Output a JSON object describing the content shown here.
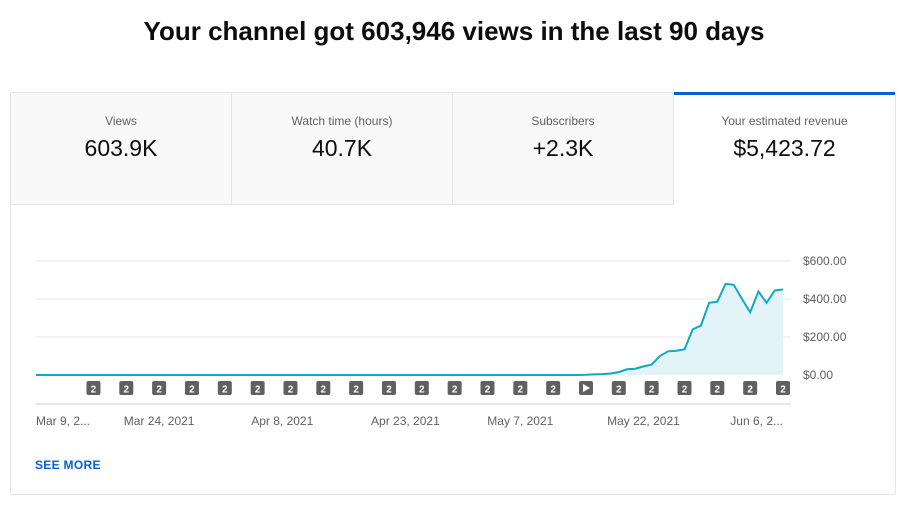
{
  "headline": "Your channel got 603,946 views in the last 90 days",
  "tabs": [
    {
      "label": "Views",
      "value": "603.9K",
      "active": false
    },
    {
      "label": "Watch time (hours)",
      "value": "40.7K",
      "active": false
    },
    {
      "label": "Subscribers",
      "value": "+2.3K",
      "active": false
    },
    {
      "label": "Your estimated revenue",
      "value": "$5,423.72",
      "active": true
    }
  ],
  "see_more": "SEE MORE",
  "colors": {
    "accent": "#065fd4",
    "line": "#10a8c4",
    "area": "#e3f4f8",
    "marker": "#606060"
  },
  "chart_data": {
    "type": "area",
    "ylabel": "",
    "xlabel": "",
    "ylim": [
      0,
      600
    ],
    "y_ticks": [
      {
        "value": 600,
        "label": "$600.00"
      },
      {
        "value": 400,
        "label": "$400.00"
      },
      {
        "value": 200,
        "label": "$200.00"
      },
      {
        "value": 0,
        "label": "$0.00"
      }
    ],
    "x_tick_labels": [
      {
        "day": 0,
        "label": "Mar 9, 2..."
      },
      {
        "day": 15,
        "label": "Mar 24, 2021"
      },
      {
        "day": 30,
        "label": "Apr 8, 2021"
      },
      {
        "day": 45,
        "label": "Apr 23, 2021"
      },
      {
        "day": 59,
        "label": "May 7, 2021"
      },
      {
        "day": 74,
        "label": "May 22, 2021"
      },
      {
        "day": 89,
        "label": "Jun 6, 2..."
      }
    ],
    "series": [
      {
        "values": [
          0,
          0,
          0,
          0,
          0,
          0,
          0,
          0,
          0,
          0,
          0,
          0,
          0,
          0,
          0,
          0,
          0,
          0,
          0,
          0,
          0,
          0,
          0,
          0,
          0,
          0,
          0,
          0,
          0,
          0,
          0,
          0,
          0,
          0,
          0,
          0,
          0,
          0,
          0,
          0,
          0,
          0,
          0,
          0,
          0,
          0,
          0,
          0,
          0,
          0,
          0,
          0,
          0,
          0,
          0,
          0,
          0,
          0,
          0,
          0,
          0,
          0,
          0,
          0,
          0,
          0,
          0,
          1,
          3,
          5,
          8,
          15,
          30,
          33,
          45,
          55,
          100,
          125,
          128,
          135,
          240,
          260,
          380,
          385,
          480,
          475,
          400,
          330,
          440,
          380,
          445,
          450
        ]
      }
    ],
    "markers": [
      {
        "day": 7,
        "label": "2"
      },
      {
        "day": 11,
        "label": "2"
      },
      {
        "day": 15,
        "label": "2"
      },
      {
        "day": 19,
        "label": "2"
      },
      {
        "day": 23,
        "label": "2"
      },
      {
        "day": 27,
        "label": "2"
      },
      {
        "day": 31,
        "label": "2"
      },
      {
        "day": 35,
        "label": "2"
      },
      {
        "day": 39,
        "label": "2"
      },
      {
        "day": 43,
        "label": "2"
      },
      {
        "day": 47,
        "label": "2"
      },
      {
        "day": 51,
        "label": "2"
      },
      {
        "day": 55,
        "label": "2"
      },
      {
        "day": 59,
        "label": "2"
      },
      {
        "day": 63,
        "label": "2"
      },
      {
        "day": 67,
        "label": "play"
      },
      {
        "day": 71,
        "label": "2"
      },
      {
        "day": 75,
        "label": "2"
      },
      {
        "day": 79,
        "label": "2"
      },
      {
        "day": 83,
        "label": "2"
      },
      {
        "day": 87,
        "label": "2"
      },
      {
        "day": 91,
        "label": "2"
      }
    ],
    "grid": true
  }
}
